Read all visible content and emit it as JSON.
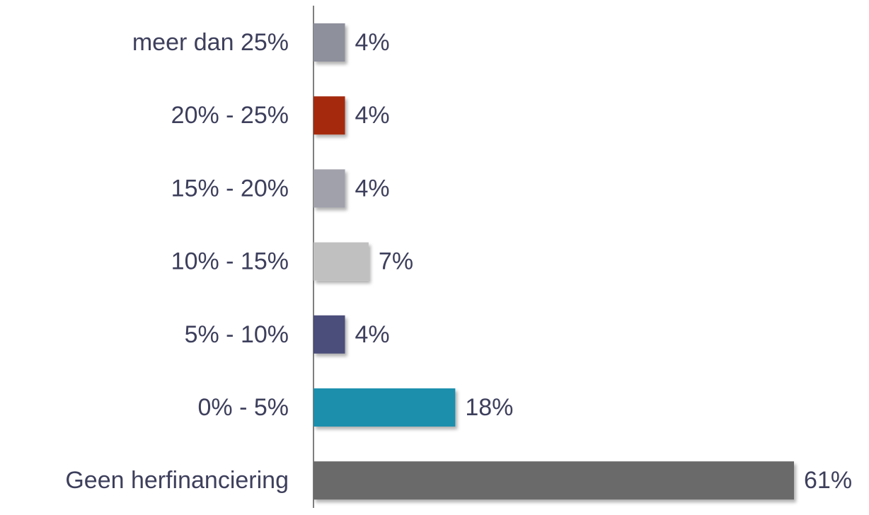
{
  "chart_data": {
    "type": "bar",
    "orientation": "horizontal",
    "categories": [
      "meer dan 25%",
      "20% - 25%",
      "15% - 20%",
      "10% - 15%",
      "5% - 10%",
      "0% - 5%",
      "Geen herfinanciering"
    ],
    "values": [
      4,
      4,
      4,
      7,
      4,
      18,
      61
    ],
    "value_labels": [
      "4%",
      "4%",
      "4%",
      "7%",
      "4%",
      "18%",
      "61%"
    ],
    "colors": [
      "#8e909c",
      "#a52a0e",
      "#a0a1ab",
      "#c0c0c0",
      "#4b4d7a",
      "#1f8fad",
      "#6b6b6b"
    ]
  }
}
